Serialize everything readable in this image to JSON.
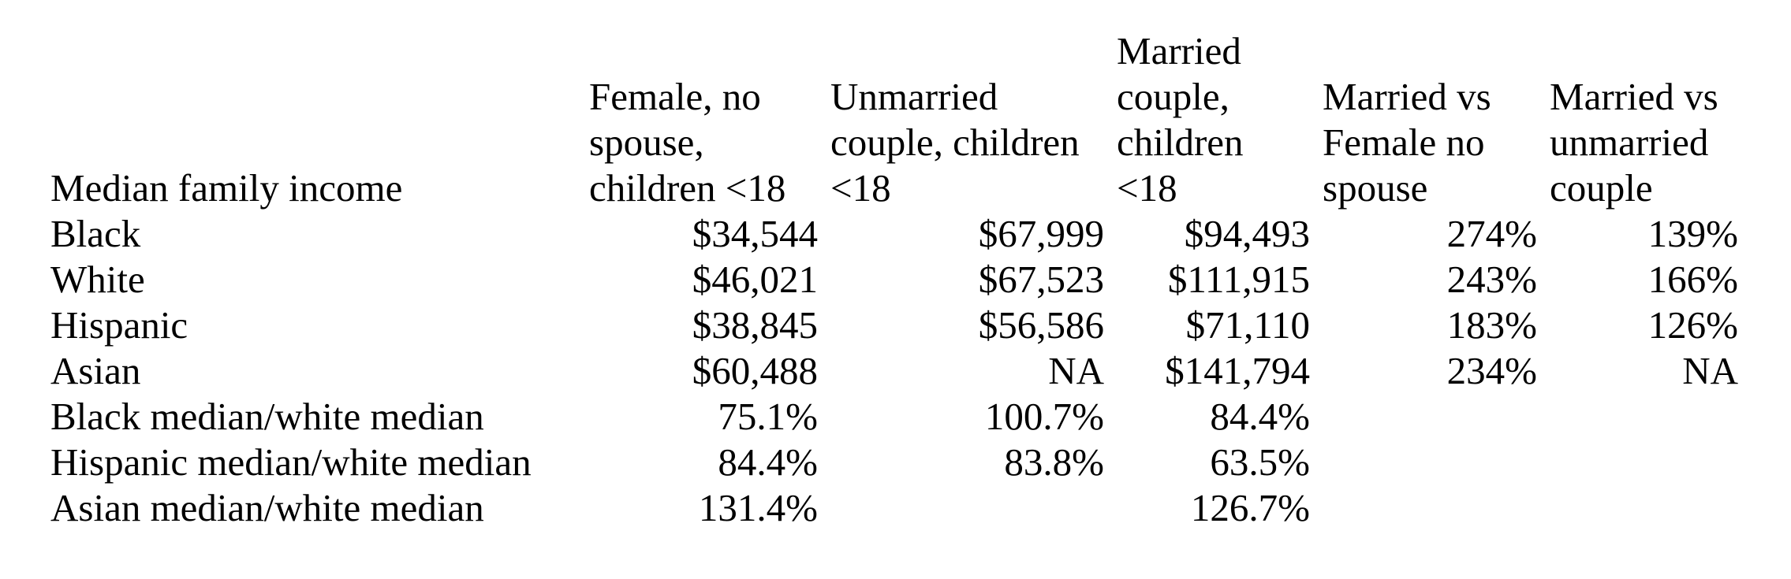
{
  "table": {
    "corner_label": "Median family income",
    "columns": [
      "Female, no\nspouse,\nchildren <18",
      "Unmarried\ncouple, children\n<18",
      "Married\ncouple,\nchildren\n<18",
      "Married vs\nFemale no\nspouse",
      "Married vs\nunmarried\ncouple"
    ],
    "rows": [
      {
        "label": "Black",
        "cells": [
          "$34,544",
          "$67,999",
          "$94,493",
          "274%",
          "139%"
        ]
      },
      {
        "label": "White",
        "cells": [
          "$46,021",
          "$67,523",
          "$111,915",
          "243%",
          "166%"
        ]
      },
      {
        "label": "Hispanic",
        "cells": [
          "$38,845",
          "$56,586",
          "$71,110",
          "183%",
          "126%"
        ]
      },
      {
        "label": "Asian",
        "cells": [
          "$60,488",
          "NA",
          "$141,794",
          "234%",
          "NA"
        ]
      },
      {
        "label": "Black median/white median",
        "cells": [
          "75.1%",
          "100.7%",
          "84.4%",
          "",
          ""
        ]
      },
      {
        "label": "Hispanic median/white median",
        "cells": [
          "84.4%",
          "83.8%",
          "63.5%",
          "",
          ""
        ]
      },
      {
        "label": "Asian median/white median",
        "cells": [
          "131.4%",
          "",
          "126.7%",
          "",
          ""
        ]
      }
    ]
  }
}
